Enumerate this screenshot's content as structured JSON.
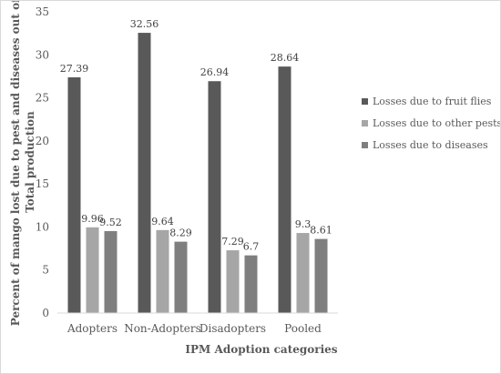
{
  "chart_data": {
    "type": "bar",
    "categories": [
      "Adopters",
      "Non-Adopters",
      "Disadopters",
      "Pooled"
    ],
    "series": [
      {
        "name": "Losses due to fruit flies",
        "values": [
          27.39,
          32.56,
          26.94,
          28.64
        ],
        "labels": [
          "27.39",
          "32.56",
          "26.94",
          "28.64"
        ],
        "color": "#595959"
      },
      {
        "name": "Losses due to other pests",
        "values": [
          9.96,
          9.64,
          7.29,
          9.3
        ],
        "labels": [
          "9.96",
          "9.64",
          "7.29",
          "9.3"
        ],
        "color": "#a6a6a6"
      },
      {
        "name": "Losses due to diseases",
        "values": [
          9.52,
          8.29,
          6.7,
          8.61
        ],
        "labels": [
          "9.52",
          "8.29",
          "6.7",
          "8.61"
        ],
        "color": "#7f7f7f"
      }
    ],
    "xlabel": "IPM Adoption categories",
    "ylabel": [
      "Percent of mango lost due to pest and diseases out of",
      "Total production"
    ],
    "ylim": [
      0,
      35
    ],
    "yticks": [
      0,
      5,
      10,
      15,
      20,
      25,
      30,
      35
    ],
    "grid": false,
    "legend": "right"
  }
}
